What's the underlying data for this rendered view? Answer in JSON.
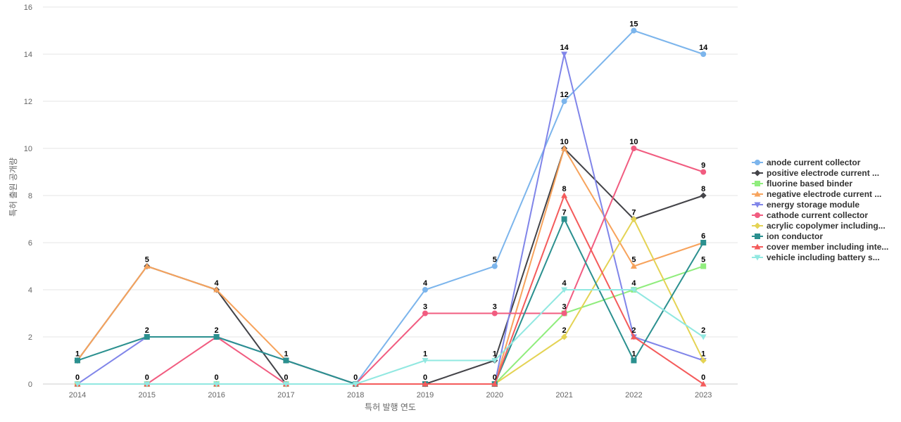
{
  "chart_data": {
    "type": "line",
    "title": "",
    "xlabel": "특허 발행 연도",
    "ylabel": "특허 출원 공개량",
    "ylim": [
      0,
      16
    ],
    "yticks": [
      0,
      2,
      4,
      6,
      8,
      10,
      12,
      14,
      16
    ],
    "categories": [
      "2014",
      "2015",
      "2016",
      "2017",
      "2018",
      "2019",
      "2020",
      "2021",
      "2022",
      "2023"
    ],
    "grid": true,
    "legend_position": "right",
    "series": [
      {
        "name": "anode current collector",
        "color": "#7cb5ec",
        "marker": "circle",
        "values": [
          0,
          0,
          0,
          0,
          0,
          4,
          5,
          12,
          15,
          14
        ]
      },
      {
        "name": "positive electrode current ...",
        "color": "#434348",
        "marker": "diamond",
        "values": [
          1,
          5,
          4,
          0,
          0,
          0,
          1,
          10,
          7,
          8
        ]
      },
      {
        "name": "fluorine based binder",
        "color": "#90ed7d",
        "marker": "square",
        "values": [
          0,
          0,
          0,
          0,
          0,
          0,
          0,
          3,
          4,
          5
        ]
      },
      {
        "name": "negative electrode current ...",
        "color": "#f7a35c",
        "marker": "triangle",
        "values": [
          1,
          5,
          4,
          1,
          0,
          0,
          0,
          10,
          5,
          6
        ]
      },
      {
        "name": "energy storage module",
        "color": "#8085e9",
        "marker": "triangle-down",
        "values": [
          0,
          2,
          2,
          1,
          0,
          0,
          0,
          14,
          2,
          1
        ]
      },
      {
        "name": "cathode current collector",
        "color": "#f15c80",
        "marker": "circle",
        "values": [
          0,
          0,
          2,
          0,
          0,
          3,
          3,
          3,
          10,
          9
        ]
      },
      {
        "name": "acrylic copolymer including...",
        "color": "#e4d354",
        "marker": "diamond",
        "values": [
          0,
          0,
          0,
          0,
          0,
          0,
          0,
          2,
          7,
          1
        ]
      },
      {
        "name": "ion conductor",
        "color": "#2b908f",
        "marker": "square",
        "values": [
          1,
          2,
          2,
          1,
          0,
          0,
          0,
          7,
          1,
          6
        ]
      },
      {
        "name": "cover member including inte...",
        "color": "#f45b5b",
        "marker": "triangle",
        "values": [
          0,
          0,
          0,
          0,
          0,
          0,
          0,
          8,
          2,
          0
        ]
      },
      {
        "name": "vehicle including battery s...",
        "color": "#91e8e1",
        "marker": "triangle-down",
        "values": [
          0,
          0,
          0,
          0,
          0,
          1,
          1,
          4,
          4,
          2
        ]
      }
    ],
    "data_labels": [
      {
        "x": "2014",
        "value": 1,
        "series": "positive electrode current ..."
      },
      {
        "x": "2014",
        "value": 0,
        "series": "anode current collector"
      },
      {
        "x": "2015",
        "value": 5,
        "series": "positive electrode current ..."
      },
      {
        "x": "2015",
        "value": 2,
        "series": "energy storage module"
      },
      {
        "x": "2015",
        "value": 0,
        "series": "anode current collector"
      },
      {
        "x": "2016",
        "value": 4,
        "series": "positive electrode current ..."
      },
      {
        "x": "2016",
        "value": 2,
        "series": "energy storage module"
      },
      {
        "x": "2016",
        "value": 0,
        "series": "anode current collector"
      },
      {
        "x": "2017",
        "value": 1,
        "series": "negative electrode current ..."
      },
      {
        "x": "2017",
        "value": 0,
        "series": "anode current collector"
      },
      {
        "x": "2018",
        "value": 0,
        "series": "anode current collector"
      },
      {
        "x": "2019",
        "value": 4,
        "series": "anode current collector"
      },
      {
        "x": "2019",
        "value": 3,
        "series": "cathode current collector"
      },
      {
        "x": "2019",
        "value": 1,
        "series": "vehicle including battery s..."
      },
      {
        "x": "2019",
        "value": 0,
        "series": "positive electrode current ..."
      },
      {
        "x": "2020",
        "value": 5,
        "series": "anode current collector"
      },
      {
        "x": "2020",
        "value": 3,
        "series": "cathode current collector"
      },
      {
        "x": "2020",
        "value": 1,
        "series": "positive electrode current ..."
      },
      {
        "x": "2020",
        "value": 0,
        "series": "fluorine based binder"
      },
      {
        "x": "2021",
        "value": 14,
        "series": "energy storage module"
      },
      {
        "x": "2021",
        "value": 12,
        "series": "anode current collector"
      },
      {
        "x": "2021",
        "value": 10,
        "series": "positive electrode current ..."
      },
      {
        "x": "2021",
        "value": 8,
        "series": "cover member including inte..."
      },
      {
        "x": "2021",
        "value": 7,
        "series": "ion conductor"
      },
      {
        "x": "2021",
        "value": 4,
        "series": "vehicle including battery s..."
      },
      {
        "x": "2021",
        "value": 3,
        "series": "cathode current collector"
      },
      {
        "x": "2021",
        "value": 2,
        "series": "acrylic copolymer including..."
      },
      {
        "x": "2022",
        "value": 15,
        "series": "anode current collector"
      },
      {
        "x": "2022",
        "value": 10,
        "series": "cathode current collector"
      },
      {
        "x": "2022",
        "value": 7,
        "series": "acrylic copolymer including..."
      },
      {
        "x": "2022",
        "value": 5,
        "series": "negative electrode current ..."
      },
      {
        "x": "2022",
        "value": 4,
        "series": "fluorine based binder"
      },
      {
        "x": "2022",
        "value": 2,
        "series": "energy storage module"
      },
      {
        "x": "2022",
        "value": 1,
        "series": "ion conductor"
      },
      {
        "x": "2023",
        "value": 14,
        "series": "anode current collector"
      },
      {
        "x": "2023",
        "value": 9,
        "series": "cathode current collector"
      },
      {
        "x": "2023",
        "value": 8,
        "series": "positive electrode current ..."
      },
      {
        "x": "2023",
        "value": 6,
        "series": "ion conductor"
      },
      {
        "x": "2023",
        "value": 5,
        "series": "fluorine based binder"
      },
      {
        "x": "2023",
        "value": 2,
        "series": "vehicle including battery s..."
      },
      {
        "x": "2023",
        "value": 1,
        "series": "energy storage module"
      },
      {
        "x": "2023",
        "value": 0,
        "series": "cover member including inte..."
      }
    ]
  }
}
